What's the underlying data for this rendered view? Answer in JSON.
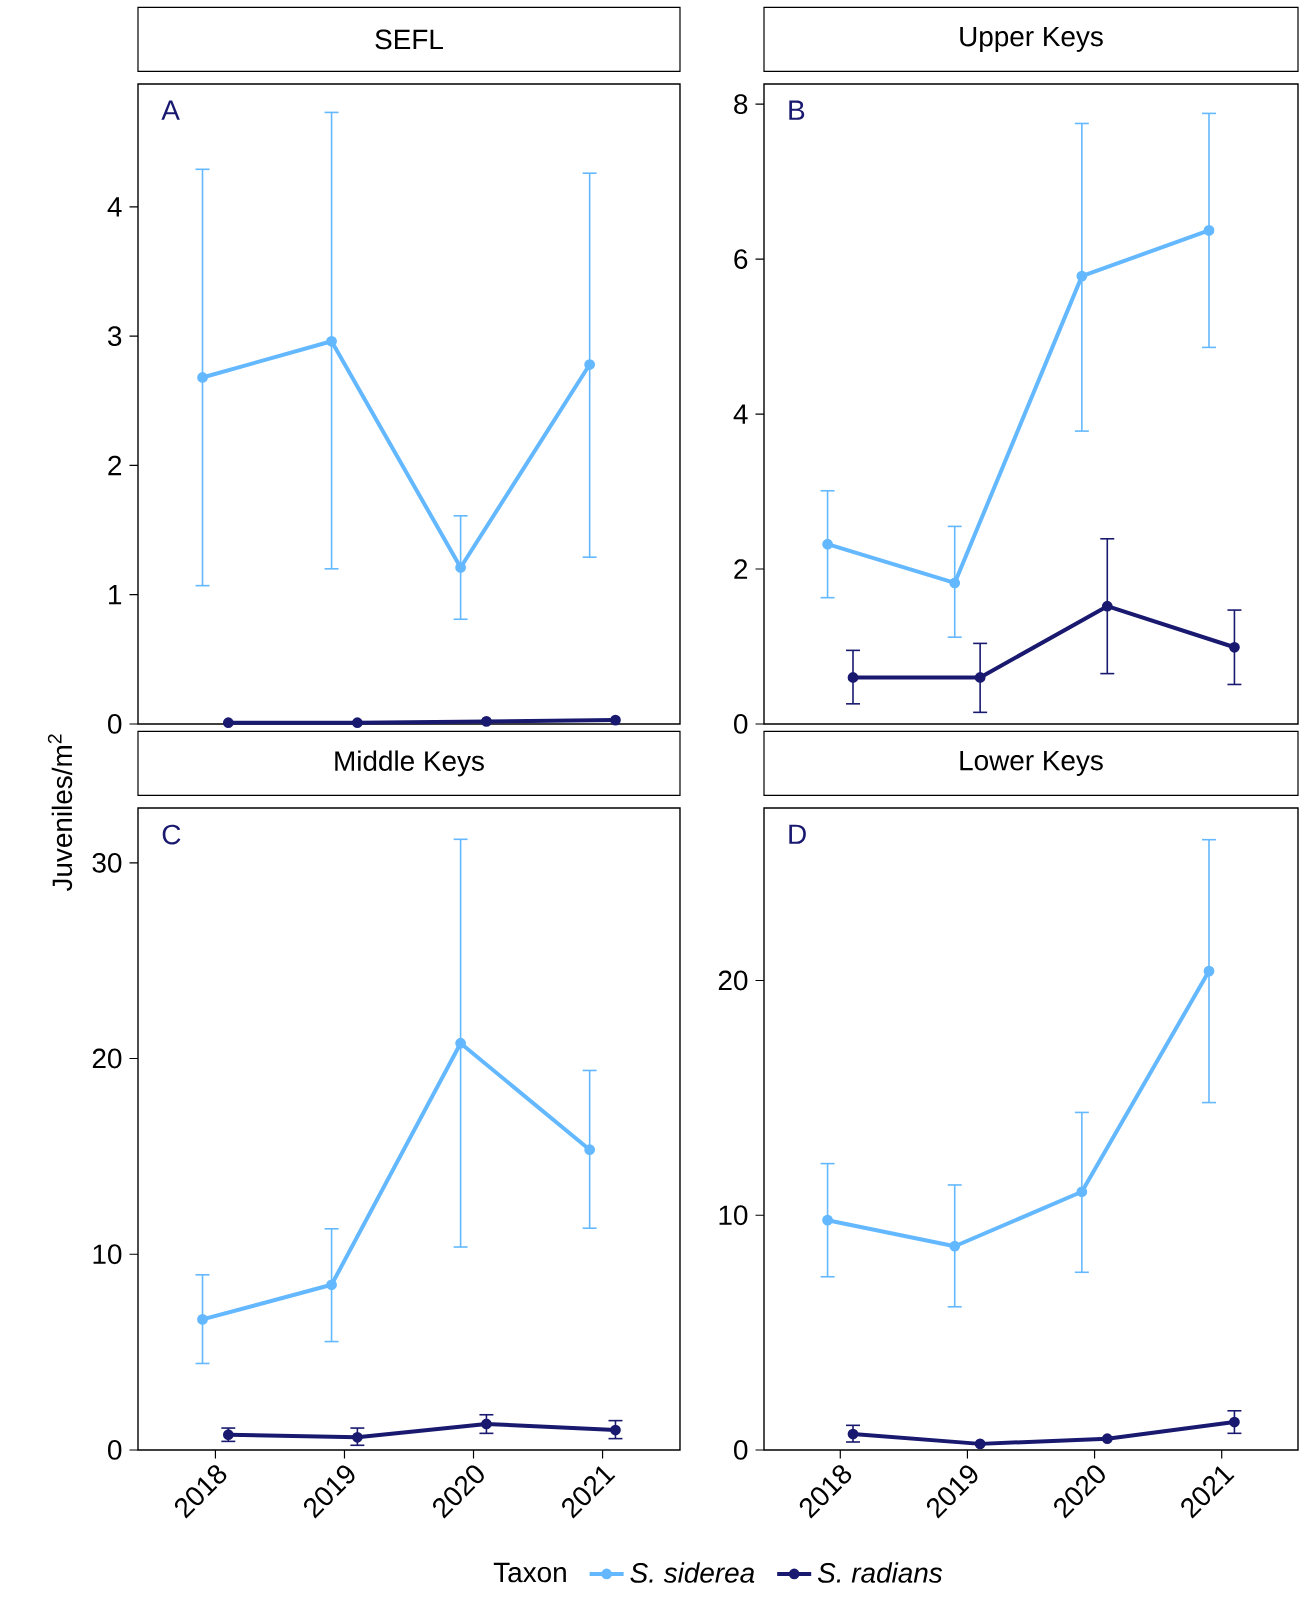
{
  "chart_data": [
    {
      "type": "line",
      "title": "SEFL",
      "ylabel": "Juveniles/m$^{2}$",
      "annotations": [
        "A"
      ],
      "categories": [
        "2018",
        "2019",
        "2020",
        "2021"
      ],
      "marker": "circle",
      "tick_labels": "y",
      "ylim": [
        0,
        4.95
      ],
      "yticks": [
        0,
        1,
        2,
        3,
        4
      ],
      "series": [
        {
          "color": "#63b8ff",
          "values": [
            2.68,
            2.96,
            1.21,
            2.78
          ],
          "errors": [
            [
              1.07,
              4.29
            ],
            [
              1.2,
              4.73
            ],
            [
              0.81,
              1.61
            ],
            [
              1.29,
              4.26
            ]
          ]
        },
        {
          "color": "#191970",
          "values": [
            0.01,
            0.01,
            0.02,
            0.03
          ]
        }
      ]
    },
    {
      "type": "line",
      "title": "Upper Keys",
      "annotations": [
        "B"
      ],
      "categories": [
        "2018",
        "2019",
        "2020",
        "2021"
      ],
      "marker": "circle",
      "tick_labels": "y",
      "ylim": [
        0,
        8.26
      ],
      "yticks": [
        0,
        2,
        4,
        6,
        8
      ],
      "series": [
        {
          "color": "#63b8ff",
          "values": [
            2.32,
            1.82,
            5.78,
            6.37
          ],
          "errors": [
            [
              1.63,
              3.01
            ],
            [
              1.12,
              2.55
            ],
            [
              3.78,
              7.75
            ],
            [
              4.86,
              7.88
            ]
          ]
        },
        {
          "color": "#191970",
          "values": [
            0.6,
            0.6,
            1.52,
            0.99
          ],
          "errors": [
            [
              0.26,
              0.95
            ],
            [
              0.15,
              1.04
            ],
            [
              0.65,
              2.39
            ],
            [
              0.51,
              1.47
            ]
          ]
        }
      ]
    },
    {
      "type": "line",
      "title": "Middle Keys",
      "annotations": [
        "C"
      ],
      "categories": [
        "2018",
        "2019",
        "2020",
        "2021"
      ],
      "marker": "circle",
      "legend": "bottom",
      "legend_title": "Taxon",
      "ylim": [
        0,
        32.8
      ],
      "yticks": [
        0,
        10,
        20,
        30
      ],
      "series": [
        {
          "name": "S. siderea",
          "color": "#63b8ff",
          "values": [
            6.67,
            8.44,
            20.78,
            15.34
          ],
          "errors": [
            [
              4.42,
              8.95
            ],
            [
              5.54,
              11.3
            ],
            [
              10.37,
              31.2
            ],
            [
              11.33,
              19.39
            ]
          ]
        },
        {
          "name": "S. radians",
          "color": "#191970",
          "values": [
            0.78,
            0.65,
            1.33,
            1.02
          ],
          "errors": [
            [
              0.44,
              1.12
            ],
            [
              0.24,
              1.12
            ],
            [
              0.85,
              1.8
            ],
            [
              0.58,
              1.5
            ]
          ]
        }
      ]
    },
    {
      "type": "line",
      "title": "Lower Keys",
      "annotations": [
        "D"
      ],
      "categories": [
        "2018",
        "2019",
        "2020",
        "2021"
      ],
      "marker": "circle",
      "ylim": [
        0,
        27.35
      ],
      "yticks": [
        0,
        10,
        20
      ],
      "series": [
        {
          "color": "#63b8ff",
          "values": [
            9.79,
            8.68,
            11.0,
            20.4
          ],
          "errors": [
            [
              7.38,
              12.2
            ],
            [
              6.1,
              11.29
            ],
            [
              7.57,
              14.38
            ],
            [
              14.8,
              26.0
            ]
          ]
        },
        {
          "color": "#191970",
          "values": [
            0.68,
            0.26,
            0.48,
            1.19
          ],
          "errors": [
            [
              0.34,
              1.05
            ],
            null,
            null,
            [
              0.71,
              1.67
            ]
          ]
        }
      ]
    }
  ]
}
